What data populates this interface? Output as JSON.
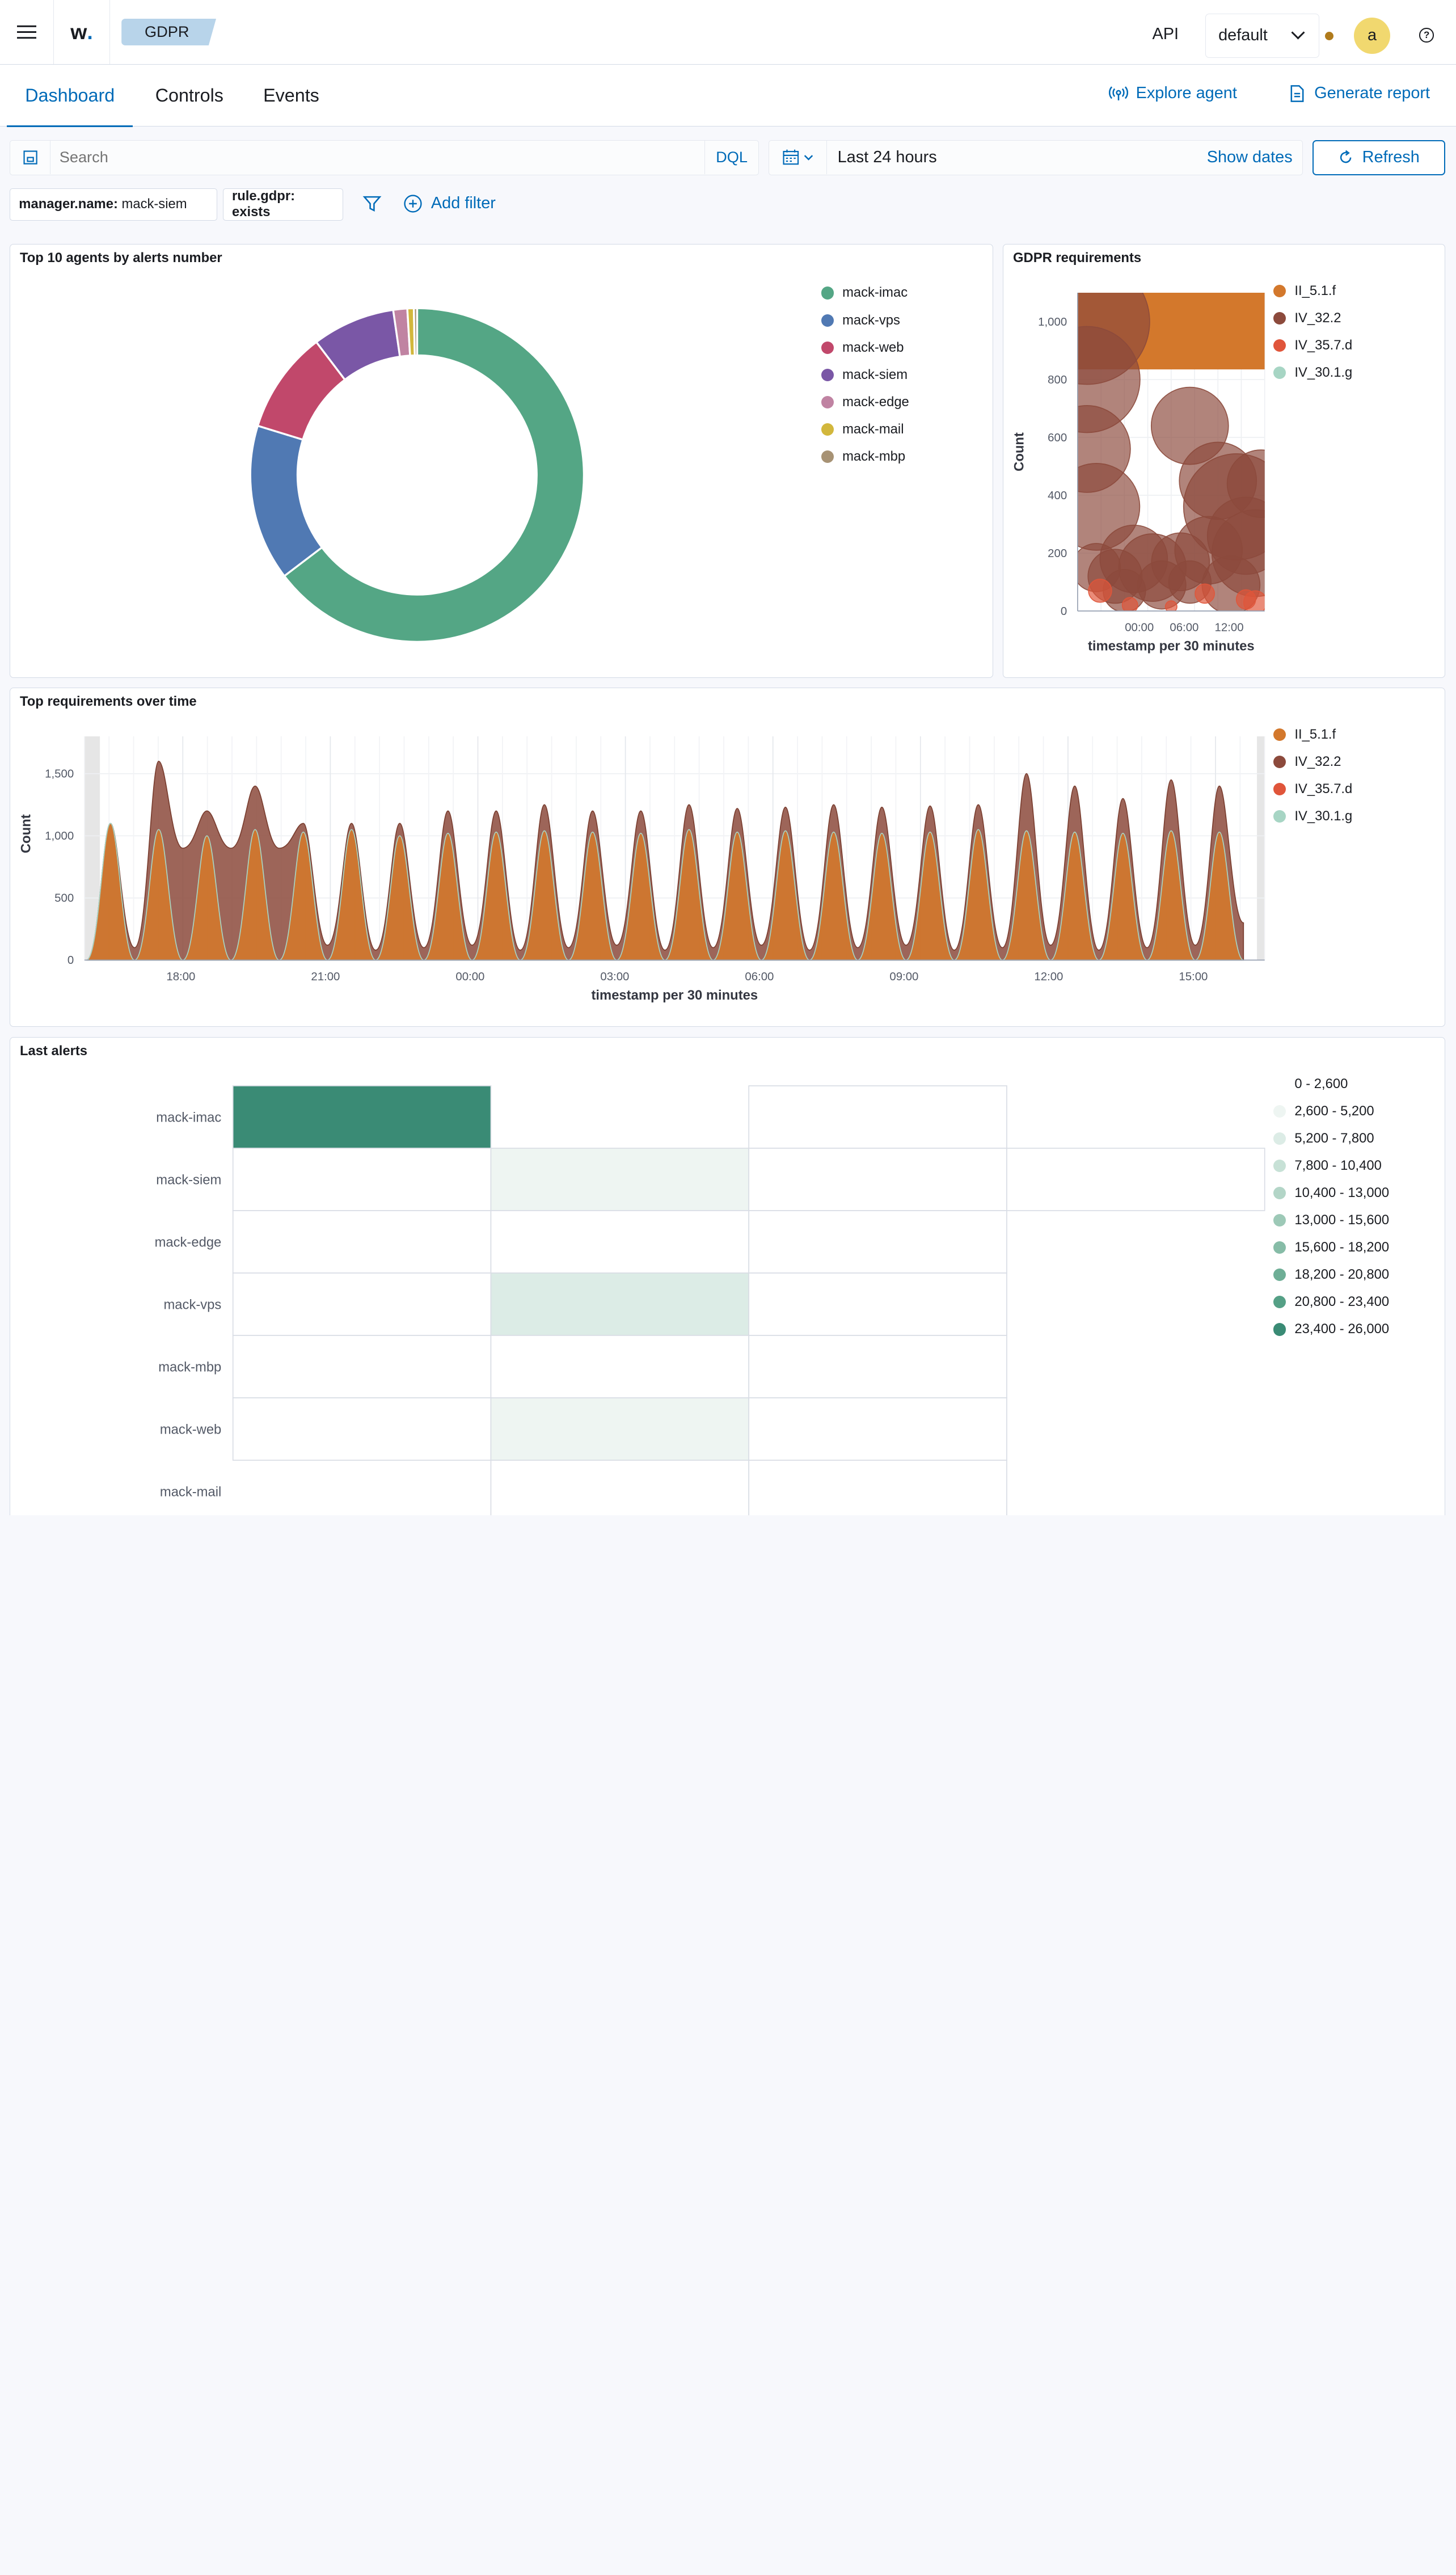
{
  "header": {
    "logo_text": "w.",
    "breadcrumb": "GDPR",
    "api_label": "API",
    "space": "default",
    "avatar_initial": "a"
  },
  "tabs": [
    {
      "label": "Dashboard",
      "active": true
    },
    {
      "label": "Controls",
      "active": false
    },
    {
      "label": "Events",
      "active": false
    }
  ],
  "tab_actions": {
    "explore_agent": "Explore agent",
    "generate_report": "Generate report"
  },
  "query_bar": {
    "search_placeholder": "Search",
    "language": "DQL",
    "time_range": "Last 24 hours",
    "show_dates": "Show dates",
    "refresh": "Refresh"
  },
  "filters": [
    {
      "field": "manager.name:",
      "value": "mack-siem"
    },
    {
      "field": "rule.gdpr: exists",
      "value": ""
    }
  ],
  "add_filter": "Add filter",
  "colors": {
    "accent": "#006bb8",
    "II_5.1.f": "#d3782c",
    "IV_32.2": "#8c4a3c",
    "IV_35.7.d": "#e0553a",
    "IV_30.1.g": "#a7d5c4"
  },
  "panels": {
    "top_agents": {
      "title": "Top 10 agents by alerts number"
    },
    "gdpr_requirements": {
      "title": "GDPR requirements"
    },
    "requirements_over_time": {
      "title": "Top requirements over time"
    },
    "last_alerts": {
      "title": "Last alerts"
    }
  },
  "chart_data": [
    {
      "id": "top_agents",
      "type": "pie",
      "donut": true,
      "title": "Top 10 agents by alerts number",
      "legend_position": "right",
      "slices": [
        {
          "label": "mack-imac",
          "value": 62.0,
          "color": "#54a685"
        },
        {
          "label": "mack-vps",
          "value": 14.5,
          "color": "#5079b3"
        },
        {
          "label": "mack-web",
          "value": 9.5,
          "color": "#c1486b"
        },
        {
          "label": "mack-siem",
          "value": 7.7,
          "color": "#7a57a6"
        },
        {
          "label": "mack-edge",
          "value": 1.3,
          "color": "#c083a2"
        },
        {
          "label": "mack-mail",
          "value": 0.6,
          "color": "#d2b73c"
        },
        {
          "label": "mack-mbp",
          "value": 0.3,
          "color": "#a79274"
        }
      ]
    },
    {
      "id": "gdpr_requirements",
      "type": "scatter",
      "title": "GDPR requirements",
      "xlabel": "timestamp per 30 minutes",
      "ylabel": "Count",
      "ylim": [
        0,
        1100
      ],
      "y_ticks": [
        0,
        200,
        400,
        600,
        800,
        1000
      ],
      "y_tick_labels": [
        "0",
        "200",
        "400",
        "600",
        "800",
        "1,000"
      ],
      "x_ticks": [
        "00:00",
        "06:00",
        "12:00"
      ],
      "grid": true,
      "legend_position": "right",
      "series": [
        {
          "name": "II_5.1.f",
          "color": "#d3782c",
          "band": [
            835,
            1100
          ]
        },
        {
          "name": "IV_32.2",
          "color": "#8c4a3c",
          "points": [
            [
              0.05,
              1000,
              65
            ],
            [
              0.05,
              800,
              55
            ],
            [
              0.05,
              560,
              45
            ],
            [
              0.1,
              360,
              45
            ],
            [
              0.6,
              640,
              40
            ],
            [
              0.75,
              450,
              40
            ],
            [
              0.85,
              360,
              55
            ],
            [
              0.9,
              260,
              40
            ],
            [
              0.95,
              200,
              45
            ],
            [
              0.3,
              180,
              35
            ],
            [
              0.4,
              150,
              35
            ],
            [
              0.55,
              170,
              30
            ],
            [
              0.7,
              210,
              35
            ],
            [
              0.2,
              120,
              28
            ],
            [
              0.98,
              440,
              35
            ],
            [
              0.1,
              150,
              25
            ],
            [
              0.25,
              70,
              22
            ],
            [
              0.45,
              90,
              25
            ],
            [
              0.6,
              100,
              22
            ],
            [
              0.82,
              90,
              30
            ]
          ]
        },
        {
          "name": "IV_35.7.d",
          "color": "#e0553a",
          "points": [
            [
              0.12,
              70,
              12
            ],
            [
              0.28,
              20,
              8
            ],
            [
              0.5,
              15,
              6
            ],
            [
              0.68,
              60,
              10
            ],
            [
              0.9,
              40,
              10
            ],
            [
              0.95,
              30,
              12
            ]
          ]
        },
        {
          "name": "IV_30.1.g",
          "color": "#a7d5c4",
          "points": []
        }
      ]
    },
    {
      "id": "requirements_over_time",
      "type": "area",
      "title": "Top requirements over time",
      "xlabel": "timestamp per 30 minutes",
      "ylabel": "Count",
      "ylim": [
        0,
        1800
      ],
      "y_ticks": [
        0,
        500,
        1000,
        1500
      ],
      "y_tick_labels": [
        "0",
        "500",
        "1,000",
        "1,500"
      ],
      "x_ticks": [
        "18:00",
        "21:00",
        "00:00",
        "03:00",
        "06:00",
        "09:00",
        "12:00",
        "15:00"
      ],
      "grid": true,
      "legend_position": "right",
      "series": [
        {
          "name": "II_5.1.f",
          "color": "#d3782c",
          "peaks": [
            1100,
            1050,
            1000,
            1050,
            1030,
            1050,
            1000,
            1020,
            1030,
            1040,
            1030,
            1020,
            1050,
            1030,
            1040,
            1030,
            1020,
            1030,
            1050,
            1040,
            1030,
            1020,
            1040,
            1030
          ]
        },
        {
          "name": "IV_32.2",
          "color": "#8c4a3c",
          "peaks": [
            1100,
            1600,
            1200,
            1400,
            1100,
            1100,
            1100,
            1200,
            1200,
            1250,
            1200,
            1200,
            1250,
            1220,
            1230,
            1250,
            1230,
            1240,
            1250,
            1500,
            1400,
            1300,
            1450,
            1400
          ]
        },
        {
          "name": "IV_35.7.d",
          "color": "#e0553a",
          "peaks": []
        },
        {
          "name": "IV_30.1.g",
          "color": "#a7d5c4",
          "peaks": []
        }
      ]
    },
    {
      "id": "last_alerts",
      "type": "heatmap",
      "title": "Last alerts",
      "rows": [
        "mack-imac",
        "mack-siem",
        "mack-edge",
        "mack-vps",
        "mack-mbp",
        "mack-web",
        "mack-mail"
      ],
      "columns": 4,
      "cells": [
        [
          26000,
          null,
          0,
          null
        ],
        [
          0,
          2800,
          0,
          0
        ],
        [
          0,
          0,
          0,
          null
        ],
        [
          0,
          5300,
          0,
          null
        ],
        [
          0,
          0,
          0,
          null
        ],
        [
          0,
          2800,
          0,
          null
        ],
        [
          null,
          0,
          0,
          null
        ]
      ],
      "legend_position": "right",
      "legend": [
        {
          "label": "0 - 2,600",
          "color": "#ffffff"
        },
        {
          "label": "2,600 - 5,200",
          "color": "#eef5f2"
        },
        {
          "label": "5,200 - 7,800",
          "color": "#dcece6"
        },
        {
          "label": "7,800 - 10,400",
          "color": "#c7e1d6"
        },
        {
          "label": "10,400 - 13,000",
          "color": "#b3d5c7"
        },
        {
          "label": "13,000 - 15,600",
          "color": "#9dc9b7"
        },
        {
          "label": "15,600 - 18,200",
          "color": "#86bca7"
        },
        {
          "label": "18,200 - 20,800",
          "color": "#6eae96"
        },
        {
          "label": "20,800 - 23,400",
          "color": "#55a086"
        },
        {
          "label": "23,400 - 26,000",
          "color": "#3a8b75"
        }
      ]
    }
  ]
}
